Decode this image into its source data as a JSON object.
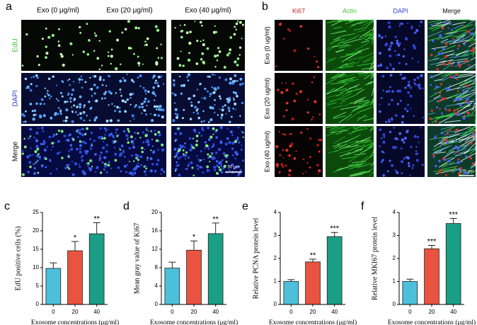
{
  "panels": {
    "a": {
      "label": "a",
      "columns": [
        "Exo (0 μg/ml)",
        "Exo (20 μg/ml)",
        "Exo (40 μg/ml)"
      ],
      "rows": [
        "EdU",
        "DAPI",
        "Merge"
      ],
      "scale_bar": "50 μm"
    },
    "b": {
      "label": "b",
      "columns": [
        "Ki67",
        "Actin",
        "DAPI",
        "Merge"
      ],
      "rows": [
        "Exo (0 ug/ml)",
        "Exo (20 ug/ml)",
        "Exo (40 ug/ml)"
      ],
      "scale_bar": "100 μm"
    }
  },
  "chart_data": [
    {
      "type": "bar",
      "panel_label": "c",
      "ylabel": "EdU positive cells (%)",
      "xlabel": "Exosome concentrations (μg/ml)",
      "categories": [
        "0",
        "20",
        "40"
      ],
      "values": [
        9.8,
        14.6,
        19.2
      ],
      "errors": [
        1.5,
        2.5,
        3.0
      ],
      "colors": [
        "#4cbfda",
        "#e9533f",
        "#1a9e86"
      ],
      "significance": [
        null,
        "*",
        "**"
      ],
      "ylim": [
        0,
        25
      ],
      "yticks": [
        0,
        5,
        10,
        15,
        20,
        25
      ]
    },
    {
      "type": "bar",
      "panel_label": "d",
      "ylabel": "Mean gray value of Ki67",
      "xlabel": "Exosome concentrations (μg/ml)",
      "categories": [
        "0",
        "20",
        "40"
      ],
      "values": [
        7.9,
        11.8,
        15.4
      ],
      "errors": [
        1.3,
        2.0,
        2.3
      ],
      "colors": [
        "#4cbfda",
        "#e9533f",
        "#1a9e86"
      ],
      "significance": [
        null,
        "*",
        "**"
      ],
      "ylim": [
        0,
        20
      ],
      "yticks": [
        0,
        4,
        8,
        12,
        16,
        20
      ]
    },
    {
      "type": "bar",
      "panel_label": "e",
      "ylabel": "Relative  PCNA  protein level",
      "xlabel": "Exosome concentrations (μg/ml)",
      "categories": [
        "0",
        "20",
        "40"
      ],
      "values": [
        1.0,
        1.85,
        2.95
      ],
      "errors": [
        0.08,
        0.12,
        0.18
      ],
      "colors": [
        "#4cbfda",
        "#e9533f",
        "#1a9e86"
      ],
      "significance": [
        null,
        "**",
        "***"
      ],
      "ylim": [
        0,
        4
      ],
      "yticks": [
        0,
        1,
        2,
        3,
        4
      ]
    },
    {
      "type": "bar",
      "panel_label": "f",
      "ylabel": "Relative  MKI67  protein level",
      "xlabel": "Exosome concentrations (μg/ml)",
      "categories": [
        "0",
        "20",
        "40"
      ],
      "values": [
        1.0,
        2.42,
        3.52
      ],
      "errors": [
        0.1,
        0.15,
        0.22
      ],
      "colors": [
        "#4cbfda",
        "#e9533f",
        "#1a9e86"
      ],
      "significance": [
        null,
        "***",
        "***"
      ],
      "ylim": [
        0,
        4
      ],
      "yticks": [
        0,
        1,
        2,
        3,
        4
      ]
    }
  ]
}
